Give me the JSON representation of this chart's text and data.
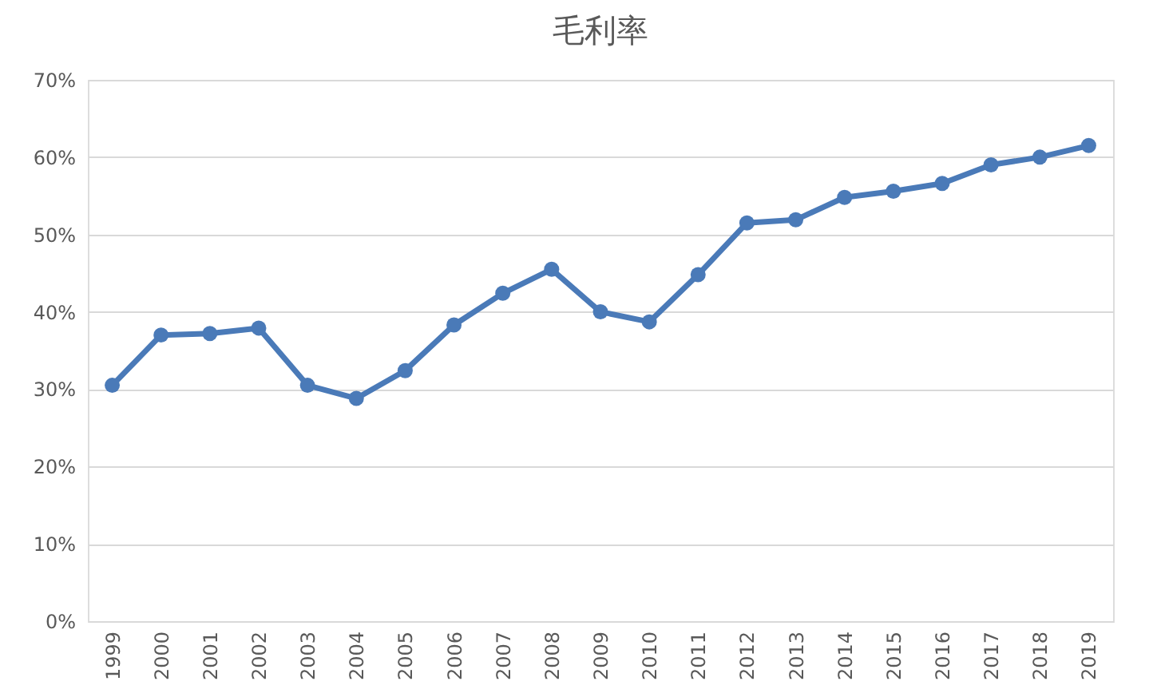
{
  "chart_data": {
    "type": "line",
    "title": "毛利率",
    "categories": [
      "1999",
      "2000",
      "2001",
      "2002",
      "2003",
      "2004",
      "2005",
      "2006",
      "2007",
      "2008",
      "2009",
      "2010",
      "2011",
      "2012",
      "2013",
      "2014",
      "2015",
      "2016",
      "2017",
      "2018",
      "2019"
    ],
    "series": [
      {
        "color": "#4a7ab8",
        "values": [
          30.5,
          37.0,
          37.2,
          37.9,
          30.5,
          28.8,
          32.4,
          38.3,
          42.4,
          45.5,
          40.0,
          38.7,
          44.8,
          51.5,
          51.9,
          54.8,
          55.6,
          56.6,
          59.0,
          60.0,
          61.5
        ]
      }
    ],
    "ylim": [
      0,
      70
    ],
    "yticks": [
      {
        "value": 0,
        "label": "0%"
      },
      {
        "value": 10,
        "label": "10%"
      },
      {
        "value": 20,
        "label": "20%"
      },
      {
        "value": 30,
        "label": "30%"
      },
      {
        "value": 40,
        "label": "40%"
      },
      {
        "value": 50,
        "label": "50%"
      },
      {
        "value": 60,
        "label": "60%"
      },
      {
        "value": 70,
        "label": "70%"
      }
    ],
    "grid": "y",
    "marker": "circle",
    "line_style": "solid"
  }
}
